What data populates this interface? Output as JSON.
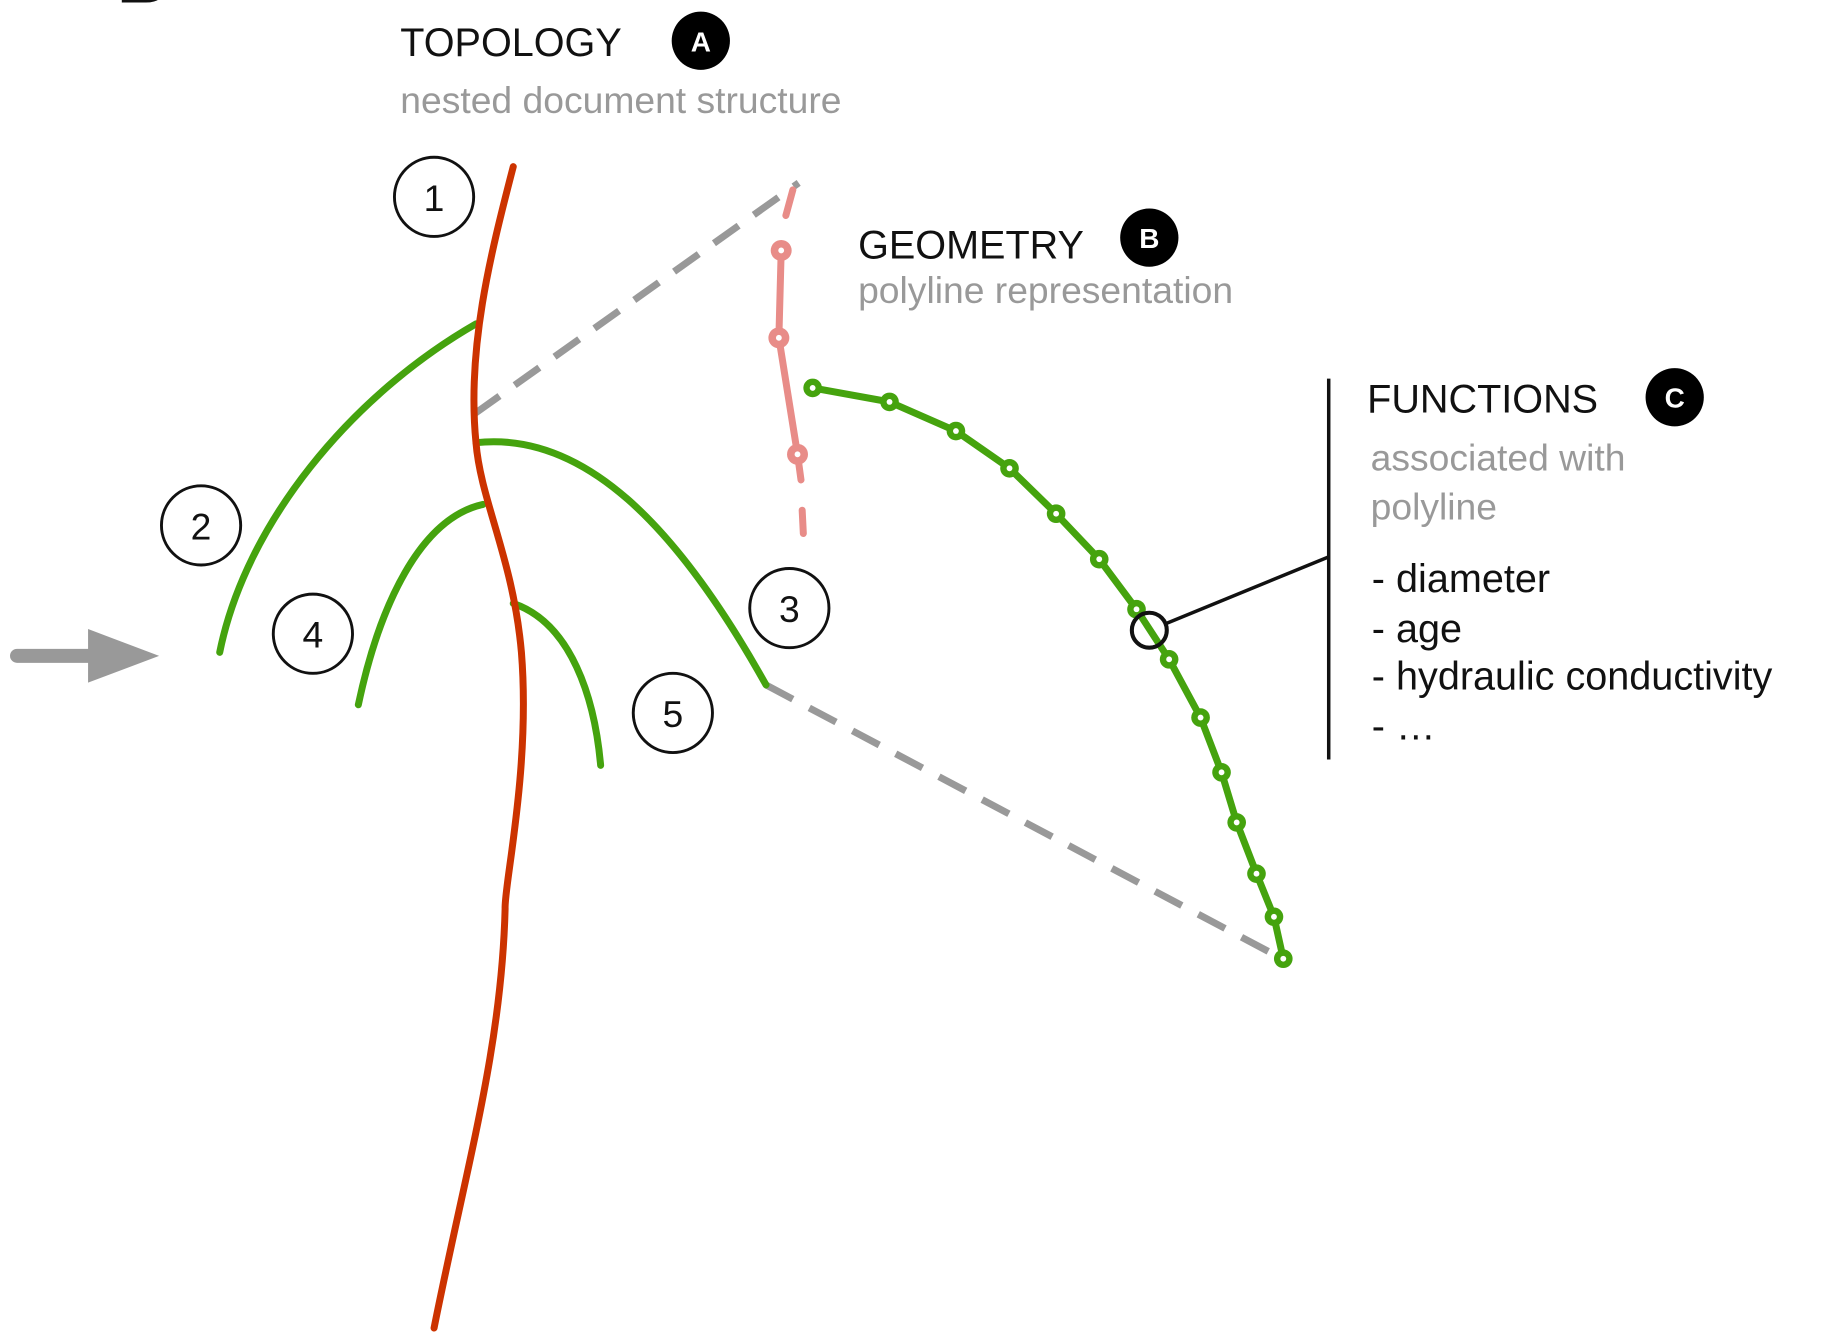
{
  "panel_label": "B",
  "sections": [
    {
      "title": "TOPOLOGY",
      "badge": "A",
      "subtitle_lines": [
        "nested document structure"
      ]
    },
    {
      "title": "GEOMETRY",
      "badge": "B",
      "subtitle_lines": [
        "polyline representation"
      ]
    },
    {
      "title": "FUNCTIONS",
      "badge": "C",
      "subtitle_lines": [
        "associated with",
        "polyline"
      ],
      "items": [
        "- diameter",
        "- age",
        "- hydraulic conductivity",
        "- …"
      ]
    }
  ],
  "nodes": [
    {
      "label": "1"
    },
    {
      "label": "2"
    },
    {
      "label": "3"
    },
    {
      "label": "4"
    },
    {
      "label": "5"
    }
  ]
}
